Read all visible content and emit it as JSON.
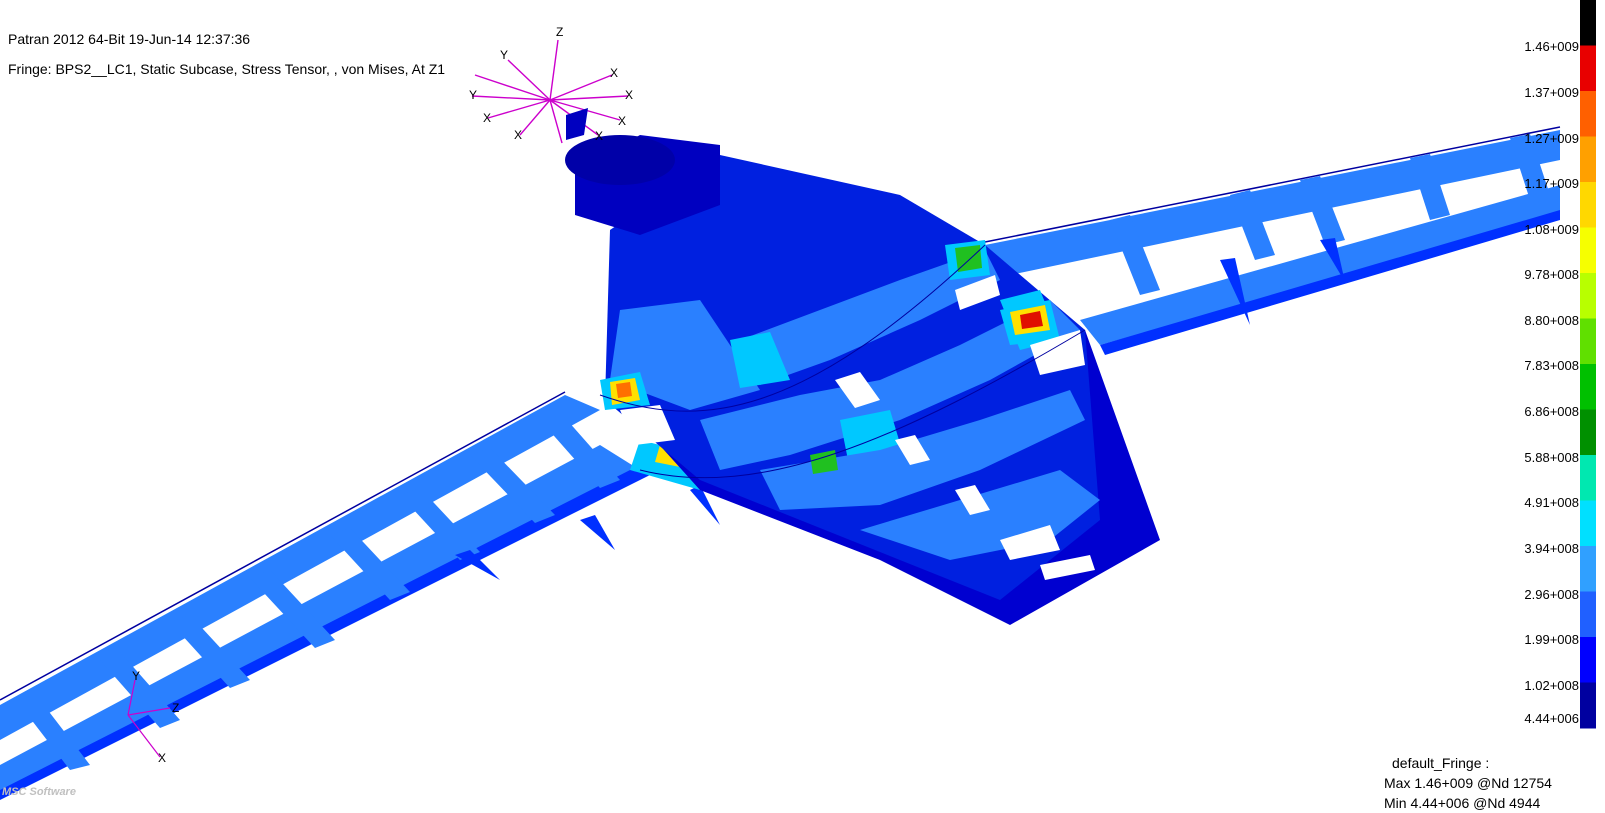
{
  "header": {
    "line1": "Patran 2012 64-Bit 19-Jun-14 12:37:36",
    "line2": "Fringe: BPS2__LC1, Static Subcase, Stress Tensor, , von Mises, At Z1"
  },
  "legend": {
    "ticks": [
      "1.46+009",
      "1.37+009",
      "1.27+009",
      "1.17+009",
      "1.08+009",
      "9.78+008",
      "8.80+008",
      "7.83+008",
      "6.86+008",
      "5.88+008",
      "4.91+008",
      "3.94+008",
      "2.96+008",
      "1.99+008",
      "1.02+008",
      "4.44+006"
    ],
    "colors": [
      "#000000",
      "#e80000",
      "#ff6000",
      "#ffa000",
      "#ffd800",
      "#f6ff00",
      "#b8ff00",
      "#60e000",
      "#00c000",
      "#009000",
      "#00e8b0",
      "#00e0ff",
      "#30a0ff",
      "#2060ff",
      "#0000ff",
      "#0000a0"
    ],
    "title": "default_Fringe :",
    "max": "Max 1.46+009 @Nd 12754",
    "min": "Min 4.44+006 @Nd 4944"
  },
  "axes": {
    "main_labels": [
      "Z",
      "Y",
      "X",
      "Y",
      "X",
      "X",
      "X",
      "X",
      "X"
    ],
    "local_labels": [
      "Y",
      "Z",
      "X"
    ],
    "color": "#cc00cc"
  },
  "model": {
    "colors": {
      "dark": "#0000d0",
      "mid": "#0040ff",
      "light": "#2a80ff",
      "cyan": "#00c8ff",
      "green": "#20c020",
      "yellow": "#ffe000",
      "orange": "#ff7000",
      "red": "#e01000"
    }
  },
  "logo": "MSC Software"
}
